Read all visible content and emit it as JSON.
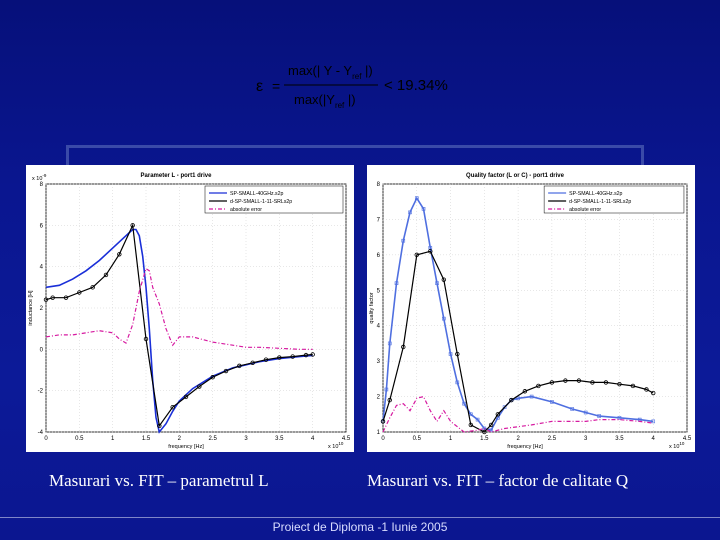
{
  "slide": {
    "formula": {
      "lhs": "ε",
      "equals": "=",
      "numerator": "max(| Y - Y",
      "numerator_sub": "ref",
      "numerator_end": " |)",
      "denominator": "max(|Y",
      "denominator_sub": "ref",
      "denominator_end": " |)",
      "result": "< 19.34%"
    },
    "captions": {
      "left": "Masurari vs. FIT – parametrul L",
      "right": "Masurari vs. FIT – factor de calitate Q"
    },
    "footer": "Proiect de Diploma -1 Iunie 2005"
  },
  "chart_data": [
    {
      "type": "line",
      "title": "Parameter L - port1 drive",
      "xlabel": "frequency [Hz]",
      "ylabel": "inductance [H]",
      "x_exponent": "x 10",
      "x_exponent_power": "10",
      "y_exponent": "x 10",
      "y_exponent_power": "-9",
      "xlim": [
        0,
        4.5
      ],
      "ylim": [
        -4,
        8
      ],
      "xticks": [
        "0",
        "0.5",
        "1",
        "1.5",
        "2",
        "2.5",
        "3",
        "3.5",
        "4",
        "4.5"
      ],
      "yticks": [
        "-4",
        "-2",
        "0",
        "2",
        "4",
        "6",
        "8"
      ],
      "grid": true,
      "legend_position": "top-right",
      "series": [
        {
          "name": "SP-SMALL-40GHz.s2p",
          "color": "#1a2fd8",
          "x": [
            0,
            0.2,
            0.4,
            0.6,
            0.8,
            1.0,
            1.2,
            1.3,
            1.35,
            1.4,
            1.45,
            1.5,
            1.55,
            1.6,
            1.65,
            1.7,
            1.8,
            1.9,
            2.0,
            2.2,
            2.5,
            2.8,
            3.0,
            3.2,
            3.5,
            3.8,
            4.0
          ],
          "y": [
            3.0,
            3.1,
            3.4,
            3.8,
            4.3,
            4.9,
            5.5,
            5.8,
            5.8,
            5.5,
            4.5,
            3.0,
            1.0,
            -1.5,
            -3.3,
            -4.0,
            -3.6,
            -3.0,
            -2.5,
            -1.9,
            -1.3,
            -0.9,
            -0.75,
            -0.6,
            -0.45,
            -0.35,
            -0.3
          ]
        },
        {
          "name": "d-SP-SMALL-1-11-SRLs2p",
          "color": "#000000",
          "x": [
            0,
            0.1,
            0.3,
            0.5,
            0.7,
            0.9,
            1.1,
            1.3,
            1.5,
            1.7,
            1.9,
            2.1,
            2.3,
            2.5,
            2.7,
            2.9,
            3.1,
            3.3,
            3.5,
            3.7,
            3.9,
            4.0
          ],
          "y": [
            2.4,
            2.5,
            2.5,
            2.75,
            3.0,
            3.6,
            4.6,
            6.0,
            0.5,
            -3.7,
            -2.8,
            -2.3,
            -1.8,
            -1.35,
            -1.05,
            -0.8,
            -0.65,
            -0.5,
            -0.4,
            -0.35,
            -0.28,
            -0.25
          ]
        },
        {
          "name": "absolute error",
          "color": "#d61aa0",
          "x": [
            0,
            0.2,
            0.4,
            0.6,
            0.8,
            1.0,
            1.1,
            1.2,
            1.3,
            1.4,
            1.5,
            1.55,
            1.6,
            1.7,
            1.8,
            1.9,
            2.0,
            2.2,
            2.5,
            2.8,
            3.0,
            3.2,
            3.5,
            3.8,
            4.0
          ],
          "y": [
            0.6,
            0.7,
            0.7,
            0.8,
            0.9,
            0.8,
            0.5,
            0.3,
            1.2,
            2.8,
            3.9,
            3.8,
            3.0,
            2.2,
            1.0,
            0.2,
            0.6,
            0.6,
            0.35,
            0.2,
            0.1,
            0.1,
            0.05,
            0.0,
            0.0
          ]
        }
      ]
    },
    {
      "type": "line",
      "title": "Quality factor (L or C) - port1 drive",
      "xlabel": "frequency [Hz]",
      "ylabel": "quality factor",
      "x_exponent": "x 10",
      "x_exponent_power": "10",
      "xlim": [
        0,
        4.5
      ],
      "ylim": [
        1,
        8
      ],
      "xticks": [
        "0",
        "0.5",
        "1",
        "1.5",
        "2",
        "2.5",
        "3",
        "3.5",
        "4",
        "4.5"
      ],
      "yticks": [
        "1",
        "2",
        "3",
        "4",
        "5",
        "6",
        "7",
        "8"
      ],
      "grid": true,
      "legend_position": "top-right",
      "series": [
        {
          "name": "SP-SMALL-40GHz.s2p",
          "color": "#4f6fe0",
          "x": [
            0,
            0.05,
            0.1,
            0.2,
            0.3,
            0.4,
            0.5,
            0.6,
            0.7,
            0.8,
            0.9,
            1.0,
            1.1,
            1.2,
            1.3,
            1.4,
            1.5,
            1.6,
            1.7,
            1.8,
            1.9,
            2.0,
            2.2,
            2.5,
            2.8,
            3.0,
            3.2,
            3.5,
            3.8,
            4.0
          ],
          "y": [
            1.3,
            2.2,
            3.5,
            5.2,
            6.4,
            7.2,
            7.6,
            7.3,
            6.2,
            5.2,
            4.2,
            3.2,
            2.4,
            1.8,
            1.5,
            1.35,
            1.1,
            1.05,
            1.4,
            1.7,
            1.9,
            1.95,
            2.0,
            1.85,
            1.65,
            1.55,
            1.45,
            1.4,
            1.35,
            1.3
          ]
        },
        {
          "name": "d-SP-SMALL-1-11-SRLs2p",
          "color": "#000000",
          "x": [
            0,
            0.1,
            0.3,
            0.5,
            0.7,
            0.9,
            1.1,
            1.3,
            1.5,
            1.6,
            1.7,
            1.9,
            2.1,
            2.3,
            2.5,
            2.7,
            2.9,
            3.1,
            3.3,
            3.5,
            3.7,
            3.9,
            4.0
          ],
          "y": [
            1.3,
            1.9,
            3.4,
            6.0,
            6.1,
            5.3,
            3.2,
            1.2,
            1.0,
            1.2,
            1.5,
            1.9,
            2.15,
            2.3,
            2.4,
            2.45,
            2.45,
            2.4,
            2.4,
            2.35,
            2.3,
            2.2,
            2.1
          ]
        },
        {
          "name": "absolute error",
          "color": "#d61aa0",
          "x": [
            0,
            0.1,
            0.2,
            0.3,
            0.4,
            0.5,
            0.6,
            0.7,
            0.8,
            0.9,
            1.0,
            1.2,
            1.4,
            1.5,
            1.6,
            1.8,
            2.0,
            2.2,
            2.5,
            2.8,
            3.0,
            3.2,
            3.5,
            3.8,
            4.0
          ],
          "y": [
            1.0,
            1.4,
            1.75,
            1.8,
            1.6,
            1.95,
            2.0,
            1.6,
            1.3,
            1.6,
            1.3,
            1.0,
            1.05,
            1.1,
            1.0,
            1.1,
            1.15,
            1.2,
            1.3,
            1.3,
            1.3,
            1.35,
            1.35,
            1.3,
            1.25
          ]
        }
      ]
    }
  ]
}
